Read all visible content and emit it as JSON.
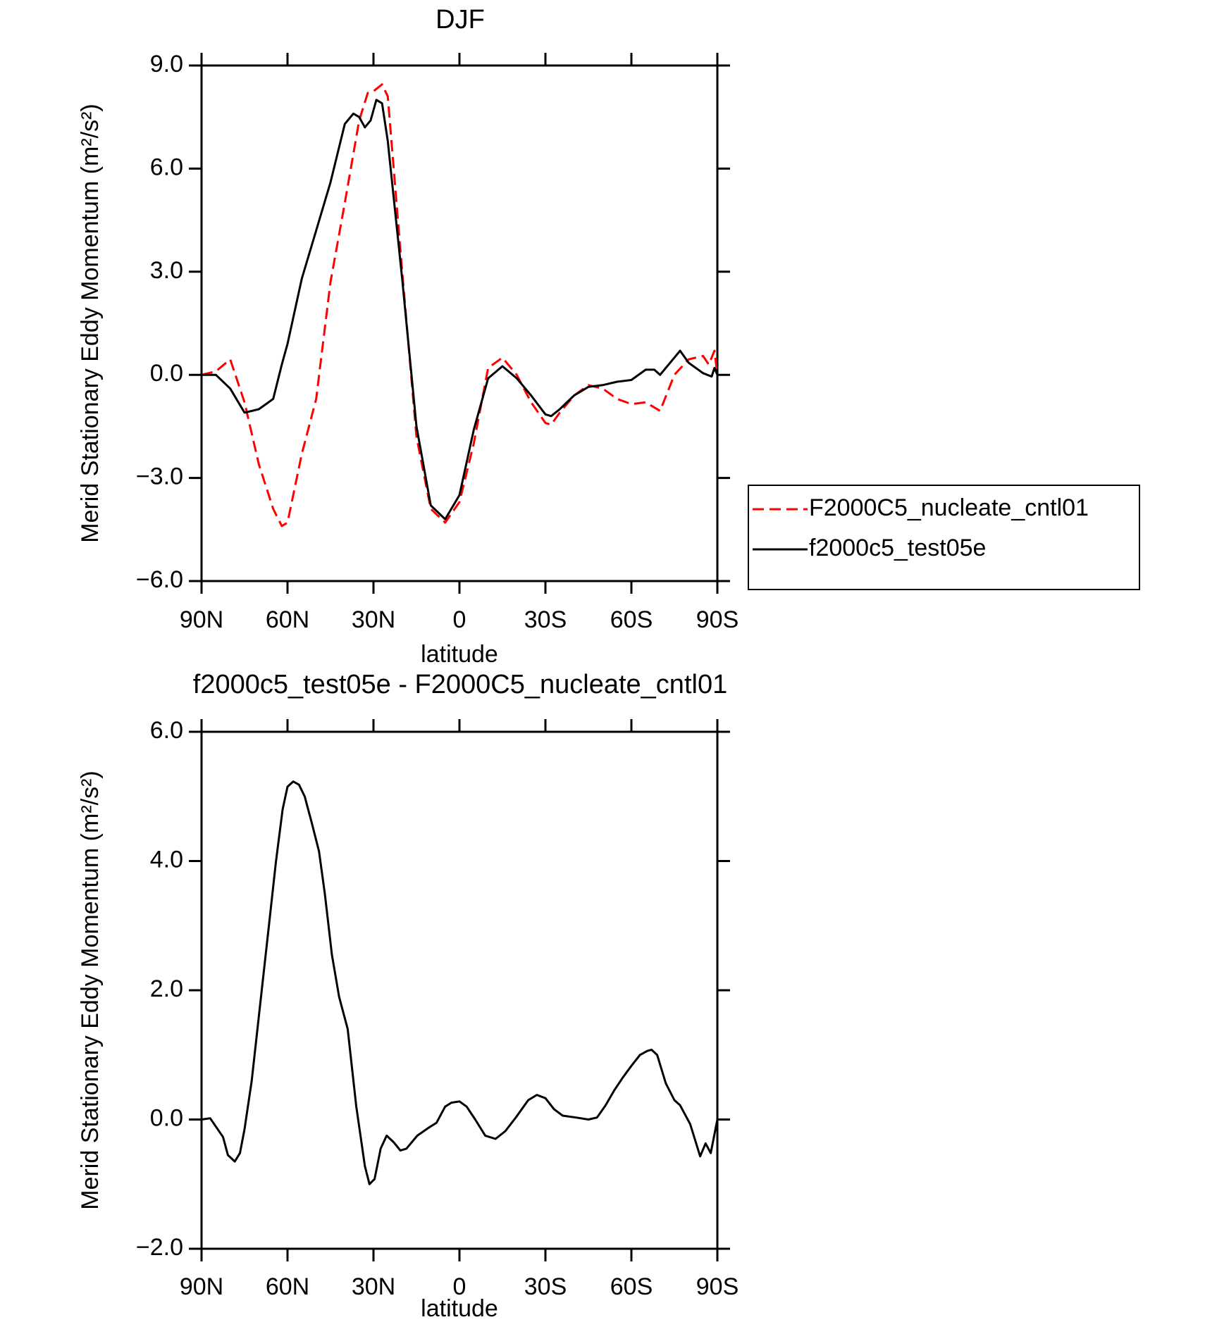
{
  "chart_data": [
    {
      "type": "line",
      "title": "DJF",
      "xlabel": "latitude",
      "ylabel": "Merid Stationary Eddy Momentum (m²/s²)",
      "xlim": [
        90,
        -90
      ],
      "ylim": [
        -6,
        9
      ],
      "xticks": [
        {
          "value": 90,
          "label": "90N"
        },
        {
          "value": 60,
          "label": "60N"
        },
        {
          "value": 30,
          "label": "30N"
        },
        0,
        {
          "value": -30,
          "label": "30S"
        },
        {
          "value": -60,
          "label": "60S"
        },
        {
          "value": -90,
          "label": "90S"
        }
      ],
      "yticks": [
        {
          "value": -6,
          "label": "−6.0"
        },
        {
          "value": -3,
          "label": "−3.0"
        },
        {
          "value": 0,
          "label": "0.0"
        },
        {
          "value": 3,
          "label": "3.0"
        },
        {
          "value": 6,
          "label": "6.0"
        },
        {
          "value": 9,
          "label": "9.0"
        }
      ],
      "legend": "right",
      "series": [
        {
          "name": "F2000C5_nucleate_cntl01",
          "color": "#ff0000",
          "dashed": true,
          "x": [
            90,
            85,
            80,
            75,
            70,
            65,
            62,
            60,
            55,
            50,
            45,
            40,
            35,
            32,
            30,
            27,
            25,
            20,
            15,
            10,
            5,
            0,
            -5,
            -10,
            -15,
            -20,
            -25,
            -30,
            -32,
            -35,
            -40,
            -45,
            -50,
            -55,
            -60,
            -65,
            -70,
            -75,
            -80,
            -85,
            -87,
            -89,
            -90
          ],
          "values": [
            0,
            0.1,
            0.45,
            -0.8,
            -2.6,
            -3.9,
            -4.4,
            -4.3,
            -2.3,
            -0.7,
            2.7,
            5.0,
            7.4,
            8.2,
            8.25,
            8.45,
            8.1,
            3.0,
            -1.8,
            -3.9,
            -4.3,
            -3.7,
            -2.0,
            0.2,
            0.5,
            0.0,
            -0.8,
            -1.4,
            -1.45,
            -1.1,
            -0.6,
            -0.3,
            -0.4,
            -0.7,
            -0.85,
            -0.8,
            -1.05,
            0.0,
            0.45,
            0.55,
            0.3,
            0.7,
            0.0
          ]
        },
        {
          "name": "f2000c5_test05e",
          "color": "#000000",
          "dashed": false,
          "x": [
            90,
            85,
            80,
            75,
            70,
            65,
            62,
            60,
            55,
            50,
            45,
            40,
            37,
            35,
            33,
            31,
            29,
            27,
            25,
            20,
            15,
            10,
            5,
            0,
            -5,
            -10,
            -15,
            -20,
            -25,
            -30,
            -32,
            -35,
            -40,
            -45,
            -50,
            -55,
            -60,
            -65,
            -68,
            -70,
            -75,
            -77,
            -80,
            -85,
            -88,
            -89,
            -90
          ],
          "values": [
            0,
            0,
            -0.4,
            -1.1,
            -1.0,
            -0.7,
            0.3,
            0.9,
            2.8,
            4.2,
            5.6,
            7.3,
            7.6,
            7.5,
            7.2,
            7.4,
            8.0,
            7.9,
            6.8,
            2.8,
            -1.5,
            -3.8,
            -4.2,
            -3.5,
            -1.6,
            -0.1,
            0.25,
            -0.1,
            -0.6,
            -1.15,
            -1.2,
            -1.0,
            -0.6,
            -0.35,
            -0.3,
            -0.2,
            -0.15,
            0.15,
            0.15,
            0.0,
            0.5,
            0.7,
            0.35,
            0.05,
            -0.05,
            0.2,
            0.0
          ]
        }
      ]
    },
    {
      "type": "line",
      "title": "f2000c5_test05e - F2000C5_nucleate_cntl01",
      "xlabel": "latitude",
      "ylabel": "Merid Stationary Eddy Momentum (m²/s²)",
      "xlim": [
        90,
        -90
      ],
      "ylim": [
        -2,
        6
      ],
      "xticks": [
        {
          "value": 90,
          "label": "90N"
        },
        {
          "value": 60,
          "label": "60N"
        },
        {
          "value": 30,
          "label": "30N"
        },
        0,
        {
          "value": -30,
          "label": "30S"
        },
        {
          "value": -60,
          "label": "60S"
        },
        {
          "value": -90,
          "label": "90S"
        }
      ],
      "yticks": [
        {
          "value": -2,
          "label": "−2.0"
        },
        {
          "value": 0,
          "label": "0.0"
        },
        {
          "value": 2,
          "label": "2.0"
        },
        {
          "value": 4,
          "label": "4.0"
        },
        {
          "value": 6,
          "label": "6.0"
        }
      ],
      "series": [
        {
          "color": "#000000",
          "dashed": false,
          "x": [
            90,
            87,
            82.5,
            80.8,
            78.4,
            76.6,
            75,
            72.5,
            69.5,
            66.5,
            64,
            61.7,
            60,
            58,
            56,
            54,
            51.6,
            49,
            47,
            44.5,
            42,
            39,
            36,
            33,
            31.4,
            29.6,
            27.5,
            25.4,
            23,
            20.6,
            18.5,
            14.7,
            10.5,
            8,
            5,
            2.8,
            0,
            -2.5,
            -5.5,
            -9,
            -12.6,
            -16,
            -20,
            -24,
            -27,
            -30,
            -33,
            -36,
            -40.7,
            -45,
            -48,
            -51,
            -54,
            -57,
            -60,
            -63,
            -65.5,
            -67,
            -69,
            -72,
            -75,
            -77,
            -80.5,
            -84,
            -85.9,
            -87.7,
            -90
          ],
          "values": [
            0,
            0.02,
            -0.27,
            -0.55,
            -0.65,
            -0.52,
            -0.15,
            0.6,
            1.8,
            3.0,
            4.0,
            4.8,
            5.15,
            5.23,
            5.18,
            5.0,
            4.6,
            4.15,
            3.5,
            2.55,
            1.9,
            1.4,
            0.2,
            -0.72,
            -1.0,
            -0.92,
            -0.45,
            -0.25,
            -0.35,
            -0.48,
            -0.45,
            -0.25,
            -0.12,
            -0.05,
            0.2,
            0.26,
            0.28,
            0.2,
            0.0,
            -0.25,
            -0.3,
            -0.18,
            0.05,
            0.3,
            0.38,
            0.33,
            0.16,
            0.06,
            0.03,
            0.0,
            0.03,
            0.22,
            0.45,
            0.65,
            0.83,
            1.0,
            1.06,
            1.08,
            1.0,
            0.56,
            0.3,
            0.22,
            -0.07,
            -0.57,
            -0.37,
            -0.52,
            0
          ]
        }
      ]
    }
  ]
}
